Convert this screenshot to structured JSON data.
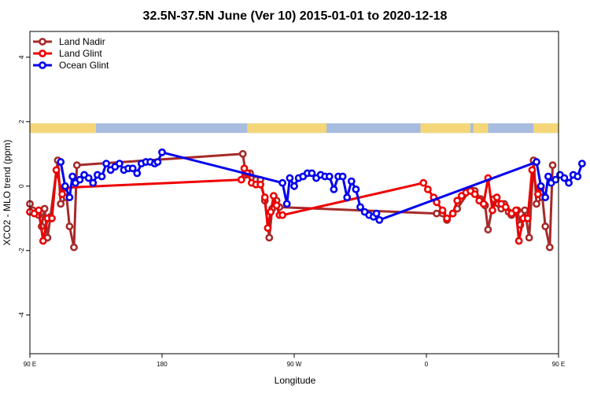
{
  "chart_data": {
    "type": "line",
    "title": "32.5N-37.5N June (Ver 10)   2015-01-01 to 2020-12-18",
    "xlabel": "Longitude",
    "ylabel": "XCO2 - MLO trend (ppm)",
    "xlim": [
      90,
      450
    ],
    "ylim": [
      -5.2,
      4.8
    ],
    "grid": false,
    "legend_position": "top-left",
    "x_ticks": [
      {
        "value": 90,
        "label": "90 E"
      },
      {
        "value": 180,
        "label": "180"
      },
      {
        "value": 270,
        "label": "90 W"
      },
      {
        "value": 360,
        "label": "0"
      },
      {
        "value": 450,
        "label": "90 E"
      },
      {
        "value": 540,
        "label": "180"
      }
    ],
    "y_ticks": [
      {
        "value": -4,
        "label": "-4"
      },
      {
        "value": -2,
        "label": "-2"
      },
      {
        "value": 0,
        "label": "0"
      },
      {
        "value": 2,
        "label": "2"
      },
      {
        "value": 4,
        "label": "4"
      }
    ],
    "land_band": {
      "ymin": 1.65,
      "ymax": 1.95,
      "ocean_color": "#a7bcdf",
      "land_color": "#f5d77a",
      "land_ranges": [
        [
          90,
          135
        ],
        [
          126,
          132
        ],
        [
          238,
          292
        ],
        [
          356,
          390
        ],
        [
          392,
          402
        ],
        [
          433,
          495
        ]
      ]
    },
    "series": [
      {
        "name": "Land Nadir",
        "color": "#a52a2a",
        "points": [
          [
            90,
            -0.55
          ],
          [
            92,
            -0.75
          ],
          [
            96,
            -0.9
          ],
          [
            98,
            -1.25
          ],
          [
            100,
            -0.7
          ],
          [
            102,
            -1.6
          ],
          [
            104,
            -0.95
          ],
          [
            109,
            0.8
          ],
          [
            111,
            -0.55
          ],
          [
            115,
            -0.35
          ],
          [
            117,
            -1.25
          ],
          [
            120,
            -1.9
          ],
          [
            122,
            0.65
          ],
          [
            235,
            1.0
          ],
          [
            237,
            0.35
          ],
          [
            240,
            0.4
          ],
          [
            244,
            0.2
          ],
          [
            247,
            0.2
          ],
          [
            250,
            -0.45
          ],
          [
            253,
            -1.6
          ],
          [
            255,
            -0.7
          ],
          [
            258,
            -0.45
          ],
          [
            260,
            -0.65
          ],
          [
            367,
            -0.85
          ],
          [
            371,
            -0.85
          ],
          [
            374,
            -1.05
          ],
          [
            378,
            -0.85
          ],
          [
            381,
            -0.7
          ],
          [
            390,
            -0.1
          ],
          [
            393,
            -0.15
          ],
          [
            397,
            -0.4
          ],
          [
            400,
            -0.6
          ],
          [
            402,
            -1.35
          ],
          [
            406,
            -0.4
          ],
          [
            409,
            -0.55
          ],
          [
            411,
            -0.7
          ],
          [
            413,
            -0.55
          ],
          [
            416,
            -0.8
          ],
          [
            418,
            -0.9
          ],
          [
            422,
            -0.75
          ],
          [
            424,
            -1.2
          ],
          [
            427,
            -0.75
          ],
          [
            430,
            -1.6
          ],
          [
            433,
            0.8
          ],
          [
            435,
            -0.55
          ],
          [
            439,
            -0.35
          ],
          [
            441,
            -1.25
          ],
          [
            444,
            -1.9
          ],
          [
            446,
            0.65
          ]
        ]
      },
      {
        "name": "Land Glint",
        "color": "#ee0000",
        "points": [
          [
            90,
            -0.8
          ],
          [
            93,
            -0.85
          ],
          [
            96,
            -0.75
          ],
          [
            99,
            -1.7
          ],
          [
            102,
            -1.0
          ],
          [
            105,
            -1.0
          ],
          [
            108,
            0.5
          ],
          [
            112,
            -0.25
          ],
          [
            114,
            -0.05
          ],
          [
            234,
            0.2
          ],
          [
            236,
            0.55
          ],
          [
            238,
            0.4
          ],
          [
            241,
            0.1
          ],
          [
            244,
            0.05
          ],
          [
            247,
            0.05
          ],
          [
            250,
            -0.35
          ],
          [
            252,
            -1.3
          ],
          [
            254,
            -0.8
          ],
          [
            256,
            -0.3
          ],
          [
            258,
            -0.6
          ],
          [
            260,
            -0.9
          ],
          [
            262,
            -0.9
          ],
          [
            358,
            0.1
          ],
          [
            361,
            -0.1
          ],
          [
            365,
            -0.35
          ],
          [
            367,
            -0.5
          ],
          [
            371,
            -0.75
          ],
          [
            374,
            -1.0
          ],
          [
            378,
            -0.85
          ],
          [
            381,
            -0.45
          ],
          [
            384,
            -0.3
          ],
          [
            387,
            -0.2
          ],
          [
            390,
            -0.15
          ],
          [
            393,
            -0.25
          ],
          [
            396,
            -0.45
          ],
          [
            399,
            -0.55
          ],
          [
            402,
            0.25
          ],
          [
            405,
            -0.75
          ],
          [
            408,
            -0.35
          ],
          [
            411,
            -0.55
          ],
          [
            414,
            -0.65
          ],
          [
            418,
            -0.85
          ],
          [
            421,
            -0.75
          ],
          [
            423,
            -1.7
          ],
          [
            426,
            -1.0
          ],
          [
            429,
            -1.0
          ],
          [
            432,
            0.5
          ],
          [
            436,
            -0.25
          ],
          [
            438,
            -0.05
          ]
        ]
      },
      {
        "name": "Ocean Glint",
        "color": "#0000ee",
        "points": [
          [
            111,
            0.75
          ],
          [
            114,
            0.0
          ],
          [
            117,
            -0.35
          ],
          [
            119,
            0.3
          ],
          [
            121,
            0.1
          ],
          [
            124,
            0.2
          ],
          [
            127,
            0.35
          ],
          [
            130,
            0.25
          ],
          [
            133,
            0.1
          ],
          [
            136,
            0.35
          ],
          [
            139,
            0.3
          ],
          [
            142,
            0.7
          ],
          [
            145,
            0.5
          ],
          [
            148,
            0.6
          ],
          [
            151,
            0.7
          ],
          [
            154,
            0.5
          ],
          [
            157,
            0.55
          ],
          [
            160,
            0.55
          ],
          [
            163,
            0.4
          ],
          [
            166,
            0.7
          ],
          [
            169,
            0.75
          ],
          [
            172,
            0.75
          ],
          [
            175,
            0.7
          ],
          [
            177,
            0.75
          ],
          [
            180,
            1.05
          ],
          [
            262,
            0.1
          ],
          [
            265,
            -0.55
          ],
          [
            267,
            0.25
          ],
          [
            270,
            0.0
          ],
          [
            273,
            0.25
          ],
          [
            276,
            0.3
          ],
          [
            279,
            0.4
          ],
          [
            282,
            0.4
          ],
          [
            285,
            0.25
          ],
          [
            288,
            0.35
          ],
          [
            291,
            0.3
          ],
          [
            294,
            0.3
          ],
          [
            297,
            -0.1
          ],
          [
            300,
            0.3
          ],
          [
            303,
            0.3
          ],
          [
            306,
            -0.35
          ],
          [
            309,
            0.15
          ],
          [
            312,
            -0.1
          ],
          [
            315,
            -0.65
          ],
          [
            318,
            -0.8
          ],
          [
            321,
            -0.9
          ],
          [
            324,
            -0.95
          ],
          [
            326,
            -0.85
          ],
          [
            328,
            -1.05
          ],
          [
            435,
            0.75
          ],
          [
            438,
            0.0
          ],
          [
            441,
            -0.35
          ],
          [
            443,
            0.3
          ],
          [
            445,
            0.1
          ],
          [
            448,
            0.2
          ],
          [
            451,
            0.35
          ],
          [
            454,
            0.25
          ],
          [
            457,
            0.1
          ],
          [
            460,
            0.35
          ],
          [
            463,
            0.3
          ],
          [
            466,
            0.7
          ]
        ]
      }
    ]
  }
}
